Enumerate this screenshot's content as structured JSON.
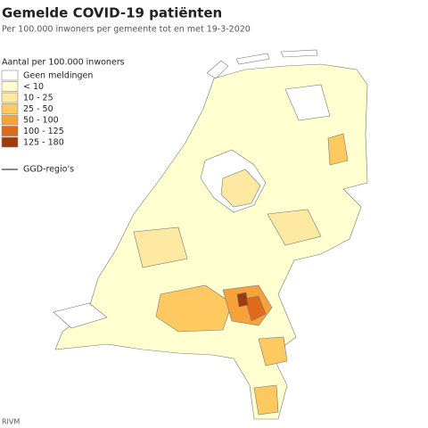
{
  "header": {
    "title": "Gemelde COVID-19 patiënten",
    "subtitle": "Per 100.000 inwoners per gemeente tot en met 19-3-2020"
  },
  "legend": {
    "title": "Aantal per 100.000 inwoners",
    "items": [
      {
        "label": "Geen meldingen",
        "color": "#ffffff"
      },
      {
        "label": "< 10",
        "color": "#ffffd0"
      },
      {
        "label": "10 - 25",
        "color": "#fee9a3"
      },
      {
        "label": "25 - 50",
        "color": "#fdc960"
      },
      {
        "label": "50 - 100",
        "color": "#f8a23b"
      },
      {
        "label": "100 - 125",
        "color": "#df6a1a"
      },
      {
        "label": "125 - 180",
        "color": "#9e3c0c"
      }
    ],
    "regions_label": "GGD-regio's"
  },
  "source": "RIVM"
}
